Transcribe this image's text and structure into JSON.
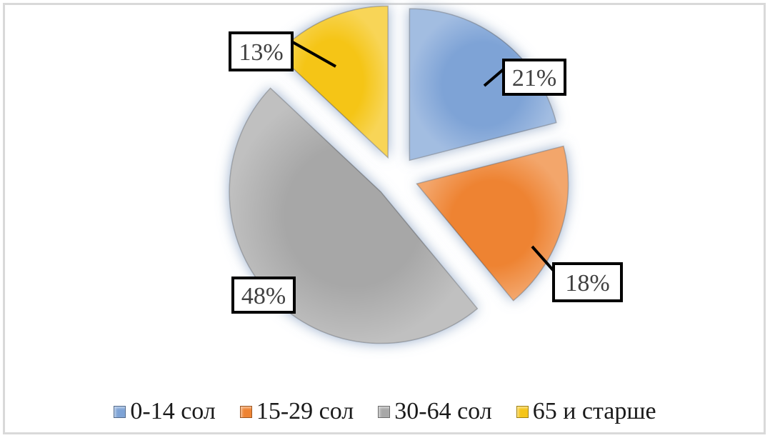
{
  "chart_data": {
    "type": "pie",
    "categories": [
      "0-14 сол",
      "15-29 сол",
      "30-64 сол",
      "65 и старше"
    ],
    "values": [
      21,
      18,
      48,
      13
    ],
    "data_labels": [
      "21%",
      "18%",
      "48%",
      "13%"
    ],
    "colors": [
      "#7ea3d6",
      "#ee8332",
      "#a7a7a7",
      "#f5c518"
    ],
    "exploded": true,
    "legend_position": "bottom",
    "start": "12 o'clock, clockwise"
  }
}
